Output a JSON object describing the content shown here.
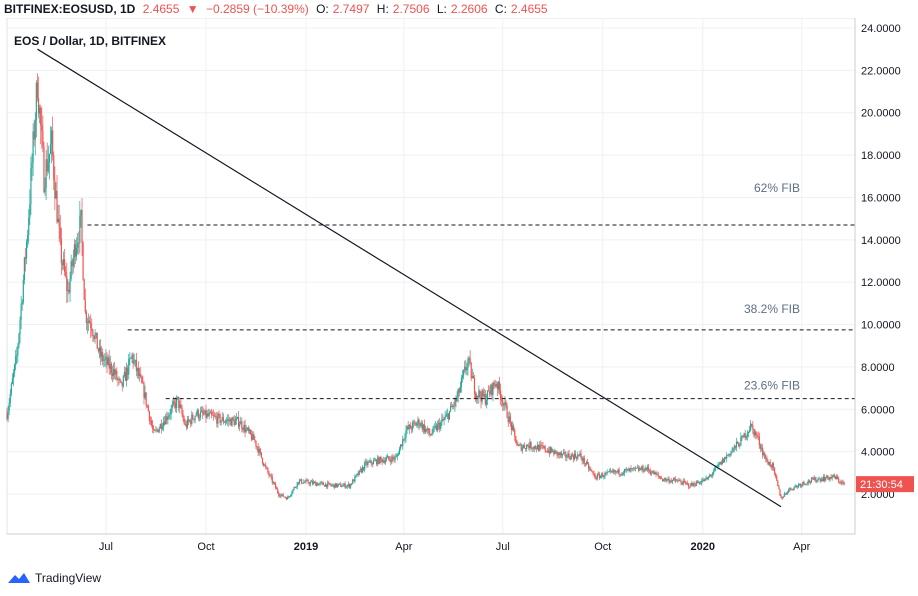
{
  "header": {
    "symbol": "BITFINEX:EOSUSD, 1D",
    "last": "2.4655",
    "change": "−0.2859 (−10.39%)",
    "o_label": "O:",
    "o_value": "2.7497",
    "h_label": "H:",
    "h_value": "2.7506",
    "l_label": "L:",
    "l_value": "2.2606",
    "c_label": "C:",
    "c_value": "2.4655"
  },
  "footer": {
    "brand": "TradingView"
  },
  "colors": {
    "up": "#26a69a",
    "down": "#ef5350",
    "grid": "#eef0f3",
    "axis": "#787b86"
  },
  "chart_data": {
    "type": "candlestick",
    "title": "EOS / Dollar, 1D, BITFINEX",
    "x_tick_labels": [
      "Jul",
      "Oct",
      "2019",
      "Apr",
      "Jul",
      "Oct",
      "2020",
      "Apr"
    ],
    "y_tick_labels": [
      "2.0000",
      "4.0000",
      "6.0000",
      "8.0000",
      "10.0000",
      "12.0000",
      "14.0000",
      "16.0000",
      "18.0000",
      "20.0000",
      "22.0000",
      "24.0000"
    ],
    "ylim": [
      0,
      24
    ],
    "current_price_label": "21:30:54",
    "current_price": 2.4655,
    "fib_levels": [
      {
        "label": "62% FIB",
        "value": 14.7
      },
      {
        "label": "38.2% FIB",
        "value": 9.75
      },
      {
        "label": "23.6% FIB",
        "value": 6.5
      }
    ],
    "trendline": {
      "start": {
        "date": "2018-04-29",
        "value": 23.0
      },
      "end": {
        "date": "2020-03-13",
        "value": 1.4
      }
    },
    "price_path": [
      [
        "2018-04-01",
        5.8
      ],
      [
        "2018-04-10",
        8.5
      ],
      [
        "2018-04-20",
        14.5
      ],
      [
        "2018-04-29",
        21.5
      ],
      [
        "2018-05-05",
        17.0
      ],
      [
        "2018-05-12",
        18.5
      ],
      [
        "2018-05-20",
        13.5
      ],
      [
        "2018-05-27",
        11.5
      ],
      [
        "2018-06-03",
        13.8
      ],
      [
        "2018-06-08",
        14.8
      ],
      [
        "2018-06-12",
        10.5
      ],
      [
        "2018-06-18",
        10.0
      ],
      [
        "2018-06-25",
        8.6
      ],
      [
        "2018-07-01",
        8.2
      ],
      [
        "2018-07-08",
        7.8
      ],
      [
        "2018-07-15",
        7.0
      ],
      [
        "2018-07-25",
        8.5
      ],
      [
        "2018-08-05",
        6.8
      ],
      [
        "2018-08-14",
        4.8
      ],
      [
        "2018-08-25",
        5.6
      ],
      [
        "2018-09-05",
        6.4
      ],
      [
        "2018-09-12",
        5.2
      ],
      [
        "2018-09-22",
        5.8
      ],
      [
        "2018-10-01",
        5.7
      ],
      [
        "2018-10-15",
        5.5
      ],
      [
        "2018-11-01",
        5.4
      ],
      [
        "2018-11-15",
        4.5
      ],
      [
        "2018-11-25",
        3.2
      ],
      [
        "2018-12-07",
        2.0
      ],
      [
        "2018-12-15",
        1.8
      ],
      [
        "2018-12-25",
        2.6
      ],
      [
        "2019-01-10",
        2.5
      ],
      [
        "2019-01-25",
        2.4
      ],
      [
        "2019-02-10",
        2.4
      ],
      [
        "2019-02-25",
        3.4
      ],
      [
        "2019-03-10",
        3.6
      ],
      [
        "2019-03-25",
        3.7
      ],
      [
        "2019-04-03",
        5.0
      ],
      [
        "2019-04-15",
        5.4
      ],
      [
        "2019-04-25",
        4.8
      ],
      [
        "2019-05-10",
        5.6
      ],
      [
        "2019-05-20",
        6.5
      ],
      [
        "2019-05-30",
        8.3
      ],
      [
        "2019-06-06",
        6.8
      ],
      [
        "2019-06-15",
        6.5
      ],
      [
        "2019-06-25",
        7.3
      ],
      [
        "2019-07-05",
        5.8
      ],
      [
        "2019-07-15",
        4.2
      ],
      [
        "2019-07-25",
        4.3
      ],
      [
        "2019-08-10",
        4.1
      ],
      [
        "2019-08-25",
        3.8
      ],
      [
        "2019-09-10",
        3.8
      ],
      [
        "2019-09-24",
        2.8
      ],
      [
        "2019-10-10",
        3.0
      ],
      [
        "2019-10-25",
        3.1
      ],
      [
        "2019-11-10",
        3.2
      ],
      [
        "2019-11-25",
        2.7
      ],
      [
        "2019-12-10",
        2.6
      ],
      [
        "2019-12-20",
        2.4
      ],
      [
        "2020-01-05",
        2.7
      ],
      [
        "2020-01-15",
        3.3
      ],
      [
        "2020-01-25",
        3.9
      ],
      [
        "2020-02-05",
        4.5
      ],
      [
        "2020-02-14",
        5.2
      ],
      [
        "2020-02-20",
        4.7
      ],
      [
        "2020-02-28",
        3.6
      ],
      [
        "2020-03-05",
        3.3
      ],
      [
        "2020-03-13",
        1.8
      ],
      [
        "2020-03-20",
        2.2
      ],
      [
        "2020-04-01",
        2.5
      ],
      [
        "2020-04-15",
        2.7
      ],
      [
        "2020-05-01",
        2.8
      ],
      [
        "2020-05-10",
        2.45
      ]
    ]
  }
}
